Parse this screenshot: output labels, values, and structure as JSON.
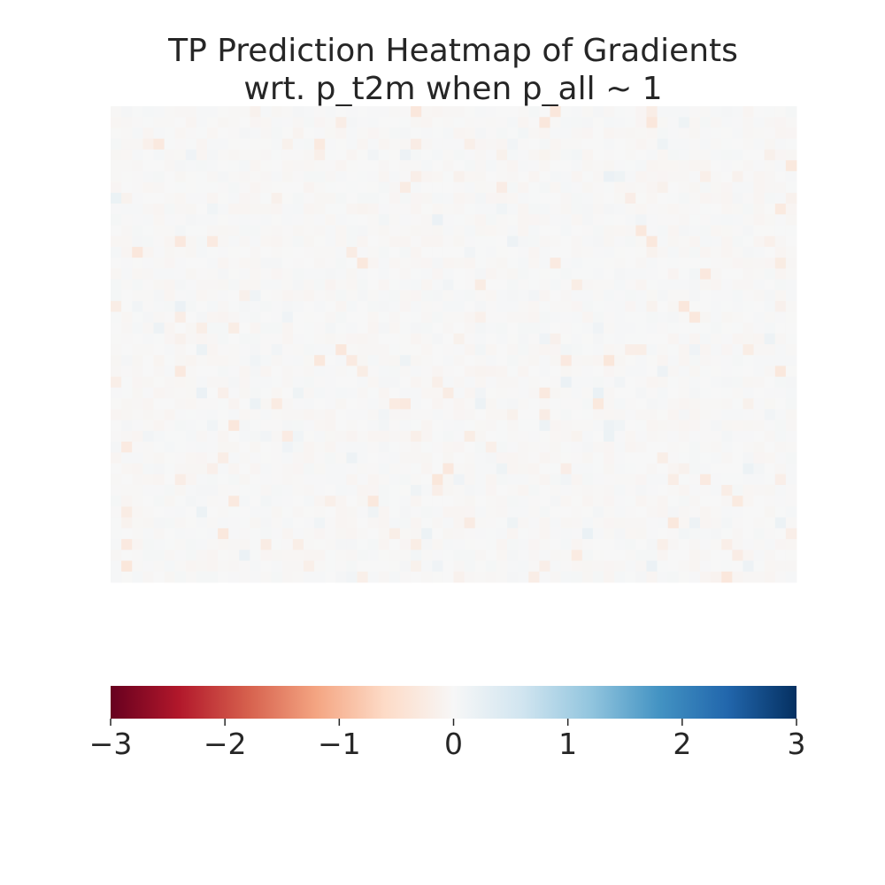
{
  "chart_data": {
    "type": "heatmap",
    "title": "TP Prediction Heatmap of Gradients",
    "subtitle": "wrt. p_t2m when p_all ~ 1",
    "colormap": "RdBu",
    "colormap_stops": [
      "#67001f",
      "#b2182b",
      "#d6604d",
      "#f4a582",
      "#fddbc7",
      "#f7f7f7",
      "#d1e5f0",
      "#92c5de",
      "#4393c3",
      "#2166ac",
      "#053061"
    ],
    "vmin": -3,
    "vmax": 3,
    "grid_rows": 44,
    "grid_cols": 64,
    "value_range_observed": [
      -0.35,
      0.2
    ],
    "colorbar": {
      "orientation": "horizontal",
      "ticks": [
        -3,
        -2,
        -1,
        0,
        1,
        2,
        3
      ],
      "tick_labels": [
        "−3",
        "−2",
        "−1",
        "0",
        "1",
        "2",
        "3"
      ]
    },
    "axes_visible": false
  }
}
